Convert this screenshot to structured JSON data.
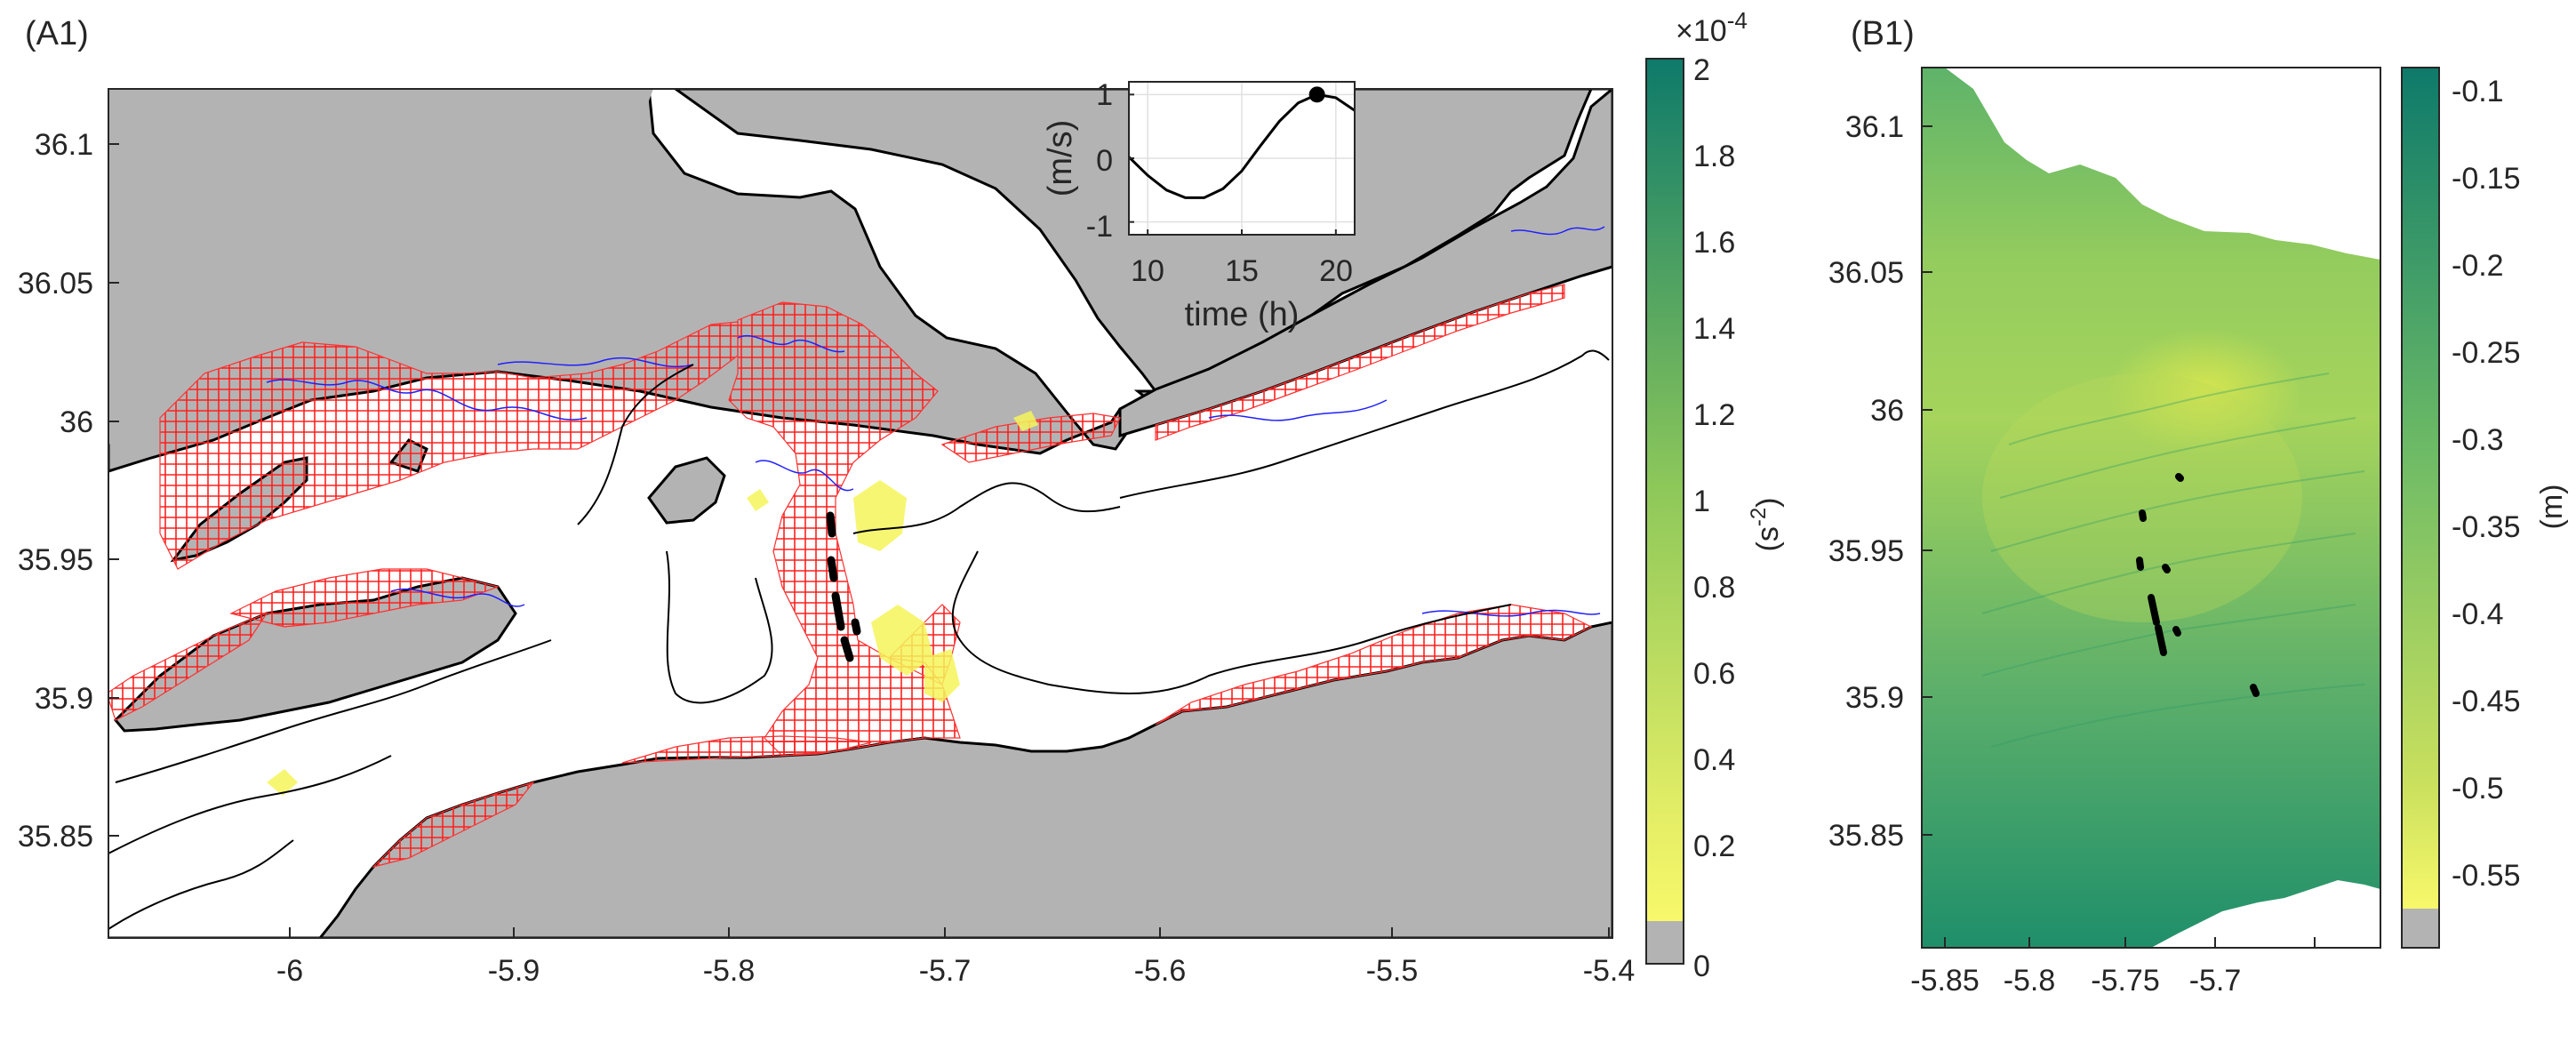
{
  "panels": {
    "a1": {
      "label": "(A1)",
      "x_ticks": [
        "-6",
        "-5.9",
        "-5.8",
        "-5.7",
        "-5.6",
        "-5.5",
        "-5.4"
      ],
      "y_ticks": [
        "36.1",
        "36.05",
        "36",
        "35.95",
        "35.9",
        "35.85"
      ],
      "colorbar": {
        "exponent_label": "×10",
        "exponent_power": "-4",
        "unit_label": "(s",
        "unit_power": "-2",
        "unit_close": ")",
        "ticks": [
          "2",
          "1.8",
          "1.6",
          "1.4",
          "1.2",
          "1",
          "0.8",
          "0.6",
          "0.4",
          "0.2",
          "0"
        ],
        "colors": {
          "top": "#0e7a6a",
          "mid": "#8ec85a",
          "low": "#e8ef6a",
          "bottom": "#f8f86a",
          "masked": "#b3b3b3"
        }
      },
      "inset": {
        "y_label": "(m/s)",
        "x_label": "time (h)",
        "x_ticks": [
          "10",
          "15",
          "20"
        ],
        "y_ticks": [
          "1",
          "0",
          "-1"
        ]
      },
      "colors": {
        "land": "#b3b3b3",
        "crosshatch": "#ff0000",
        "contour_blue": "#0000ff",
        "yellow_patch": "#f5f55a"
      }
    },
    "b1": {
      "label": "(B1)",
      "x_ticks": [
        "-5.85",
        "-5.8",
        "-5.75",
        "-5.7"
      ],
      "y_ticks": [
        "36.1",
        "36.05",
        "36",
        "35.95",
        "35.9",
        "35.85"
      ],
      "colorbar": {
        "unit_label": "(m)",
        "ticks": [
          "-0.1",
          "-0.15",
          "-0.2",
          "-0.25",
          "-0.3",
          "-0.35",
          "-0.4",
          "-0.45",
          "-0.5",
          "-0.55"
        ],
        "colors": {
          "top": "#0e7a6a",
          "mid": "#5fb26a",
          "low": "#bfdc5c",
          "bottom": "#f8f86a",
          "masked": "#b3b3b3"
        }
      }
    }
  },
  "chart_data": [
    {
      "type": "line",
      "x": [
        9,
        10,
        11,
        12,
        13,
        14,
        15,
        16,
        17,
        18,
        19,
        20,
        21
      ],
      "series": [
        {
          "values": [
            0.02,
            -0.27,
            -0.5,
            -0.62,
            -0.62,
            -0.48,
            -0.2,
            0.2,
            0.58,
            0.87,
            1.0,
            0.95,
            0.75
          ]
        }
      ],
      "marker": {
        "x": 19,
        "y": 1.0
      },
      "xlabel": "time (h)",
      "ylabel": "(m/s)",
      "xlim": [
        9,
        21
      ],
      "ylim": [
        -1.2,
        1.2
      ],
      "grid": true
    }
  ]
}
